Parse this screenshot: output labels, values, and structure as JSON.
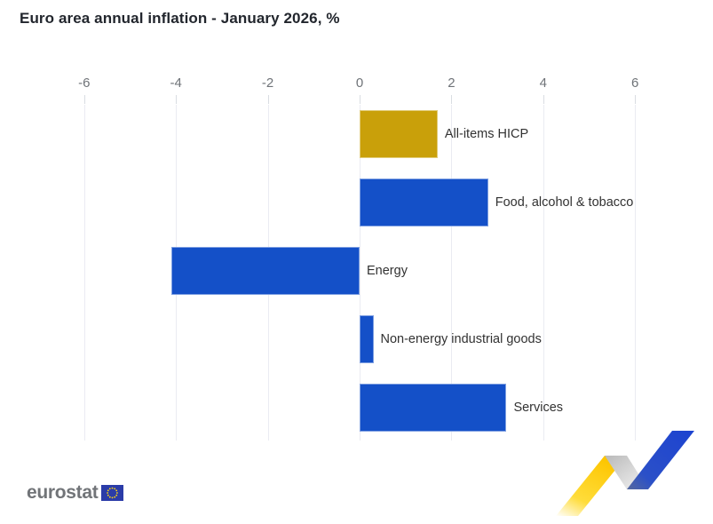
{
  "title": "Euro area annual inflation - January 2026, %",
  "chart_data": {
    "type": "bar",
    "orientation": "horizontal",
    "title": "Euro area annual inflation - January 2026, %",
    "categories": [
      "All-items HICP",
      "Food, alcohol & tobacco",
      "Energy",
      "Non-energy industrial goods",
      "Services"
    ],
    "values": [
      1.7,
      2.8,
      -4.1,
      0.3,
      3.2
    ],
    "unit": "%",
    "bar_colors": [
      "#c9a00a",
      "#1450c8",
      "#1450c8",
      "#1450c8",
      "#1450c8"
    ],
    "xlabel": "",
    "ylabel": "",
    "xlim": [
      -6,
      6
    ],
    "x_ticks": [
      -6,
      -4,
      -2,
      0,
      2,
      4,
      6
    ],
    "grid": true,
    "axis_position": "top",
    "legend": "none"
  },
  "colors": {
    "accent_gold": "#c9a00a",
    "accent_blue": "#1450c8",
    "gridline": "#eaebf2",
    "tick_label": "#6f7378",
    "bar_label": "#323232",
    "title_text": "#22262d",
    "logo_gray": "#717478",
    "eu_flag_blue": "#2b3ca8",
    "eu_star_yellow": "#ffd617"
  },
  "footer": {
    "logo_text": "eurostat"
  }
}
